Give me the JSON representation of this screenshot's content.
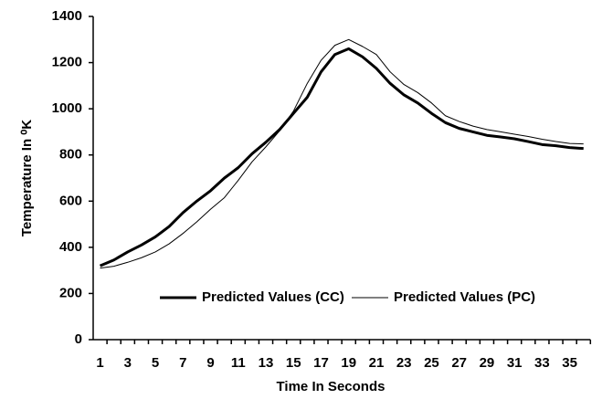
{
  "chart_data": {
    "type": "line",
    "x_label": "Time In Seconds",
    "y_label": "Temperature In ⁰K",
    "categories": [
      1,
      null,
      3,
      null,
      5,
      null,
      7,
      null,
      9,
      null,
      11,
      null,
      13,
      null,
      15,
      null,
      17,
      null,
      19,
      null,
      21,
      null,
      23,
      null,
      25,
      null,
      27,
      null,
      29,
      null,
      31,
      null,
      33,
      null,
      35,
      null
    ],
    "series": [
      {
        "name": "Predicted Values (CC)",
        "color": "#000000",
        "line_width": 3,
        "values": [
          320,
          345,
          380,
          410,
          445,
          490,
          550,
          600,
          645,
          700,
          745,
          805,
          855,
          910,
          980,
          1050,
          1160,
          1235,
          1260,
          1225,
          1175,
          1110,
          1060,
          1025,
          980,
          940,
          915,
          900,
          885,
          878,
          870,
          858,
          845,
          840,
          832,
          828
        ]
      },
      {
        "name": "Predicted Values (PC)",
        "color": "#000000",
        "line_width": 1,
        "values": [
          310,
          318,
          335,
          355,
          380,
          415,
          460,
          510,
          565,
          615,
          690,
          770,
          835,
          905,
          990,
          1110,
          1210,
          1275,
          1300,
          1270,
          1235,
          1160,
          1105,
          1070,
          1025,
          970,
          945,
          925,
          910,
          900,
          890,
          880,
          868,
          858,
          850,
          848
        ]
      }
    ],
    "ylim": [
      0,
      1400
    ],
    "yticks": [
      0,
      200,
      400,
      600,
      800,
      1000,
      1200,
      1400
    ],
    "grid": false,
    "legend": "bottom"
  }
}
